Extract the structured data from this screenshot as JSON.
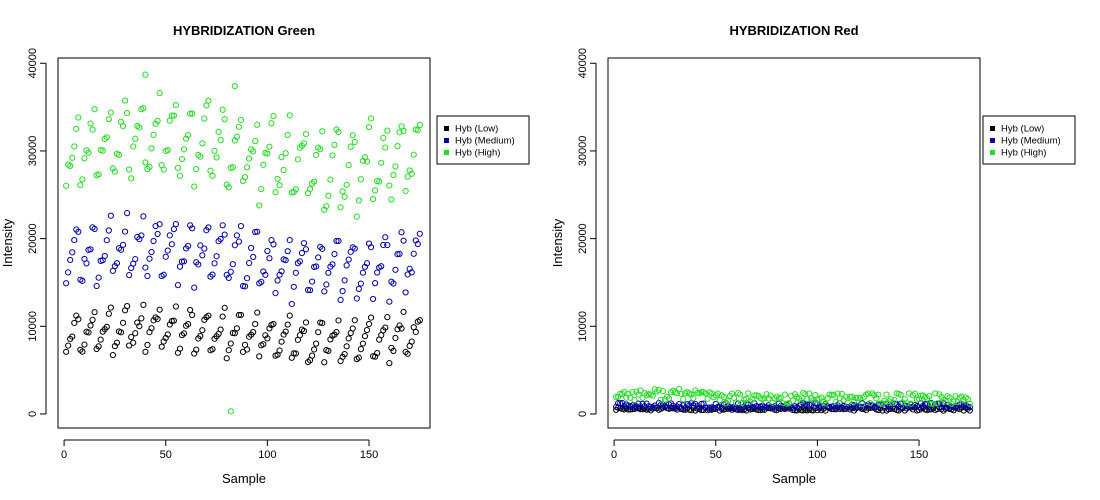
{
  "chart_data": [
    {
      "type": "scatter",
      "title": "HYBRIDIZATION Green",
      "xlabel": "Sample",
      "ylabel": "Intensity",
      "xlim": [
        -3,
        180
      ],
      "ylim": [
        -1600,
        40600
      ],
      "x_ticks": [
        0,
        50,
        100,
        150
      ],
      "x_tick_labels": [
        "0",
        "50",
        "100",
        "150"
      ],
      "y_ticks": [
        0,
        10000,
        20000,
        30000,
        40000
      ],
      "y_tick_labels": [
        "0",
        "10000",
        "20000",
        "30000",
        "40000"
      ],
      "grid": false,
      "legend_position": "right",
      "legend": [
        "Hyb (Low)",
        "Hyb (Medium)",
        "Hyb (High)"
      ],
      "series": [
        {
          "name": "Hyb (Low)",
          "color": "#000000",
          "generator": {
            "n": 175,
            "seed": 11,
            "type": "low"
          }
        },
        {
          "name": "Hyb (Medium)",
          "color": "#0000b0",
          "generator": {
            "n": 175,
            "seed": 23,
            "type": "medium"
          }
        },
        {
          "name": "Hyb (High)",
          "color": "#22dd22",
          "generator": {
            "n": 175,
            "seed": 37,
            "type": "high"
          }
        }
      ],
      "outliers": [
        {
          "series": 2,
          "x": 82,
          "y": 300
        },
        {
          "series": 2,
          "x": 40,
          "y": 38700
        },
        {
          "series": 2,
          "x": 84,
          "y": 37400
        }
      ]
    },
    {
      "type": "scatter",
      "title": "HYBRIDIZATION Red",
      "xlabel": "Sample",
      "ylabel": "Intensity",
      "xlim": [
        -3,
        180
      ],
      "ylim": [
        -1600,
        40600
      ],
      "x_ticks": [
        0,
        50,
        100,
        150
      ],
      "x_tick_labels": [
        "0",
        "50",
        "100",
        "150"
      ],
      "y_ticks": [
        0,
        10000,
        20000,
        30000,
        40000
      ],
      "y_tick_labels": [
        "0",
        "10000",
        "20000",
        "30000",
        "40000"
      ],
      "grid": false,
      "legend_position": "right",
      "legend": [
        "Hyb (Low)",
        "Hyb (Medium)",
        "Hyb (High)"
      ],
      "series": [
        {
          "name": "Hyb (Low)",
          "color": "#000000",
          "generator": {
            "n": 175,
            "seed": 51,
            "type": "red_low"
          }
        },
        {
          "name": "Hyb (Medium)",
          "color": "#0000b0",
          "generator": {
            "n": 175,
            "seed": 63,
            "type": "red_medium"
          }
        },
        {
          "name": "Hyb (High)",
          "color": "#22dd22",
          "generator": {
            "n": 175,
            "seed": 77,
            "type": "red_high"
          }
        }
      ],
      "outliers": []
    }
  ]
}
